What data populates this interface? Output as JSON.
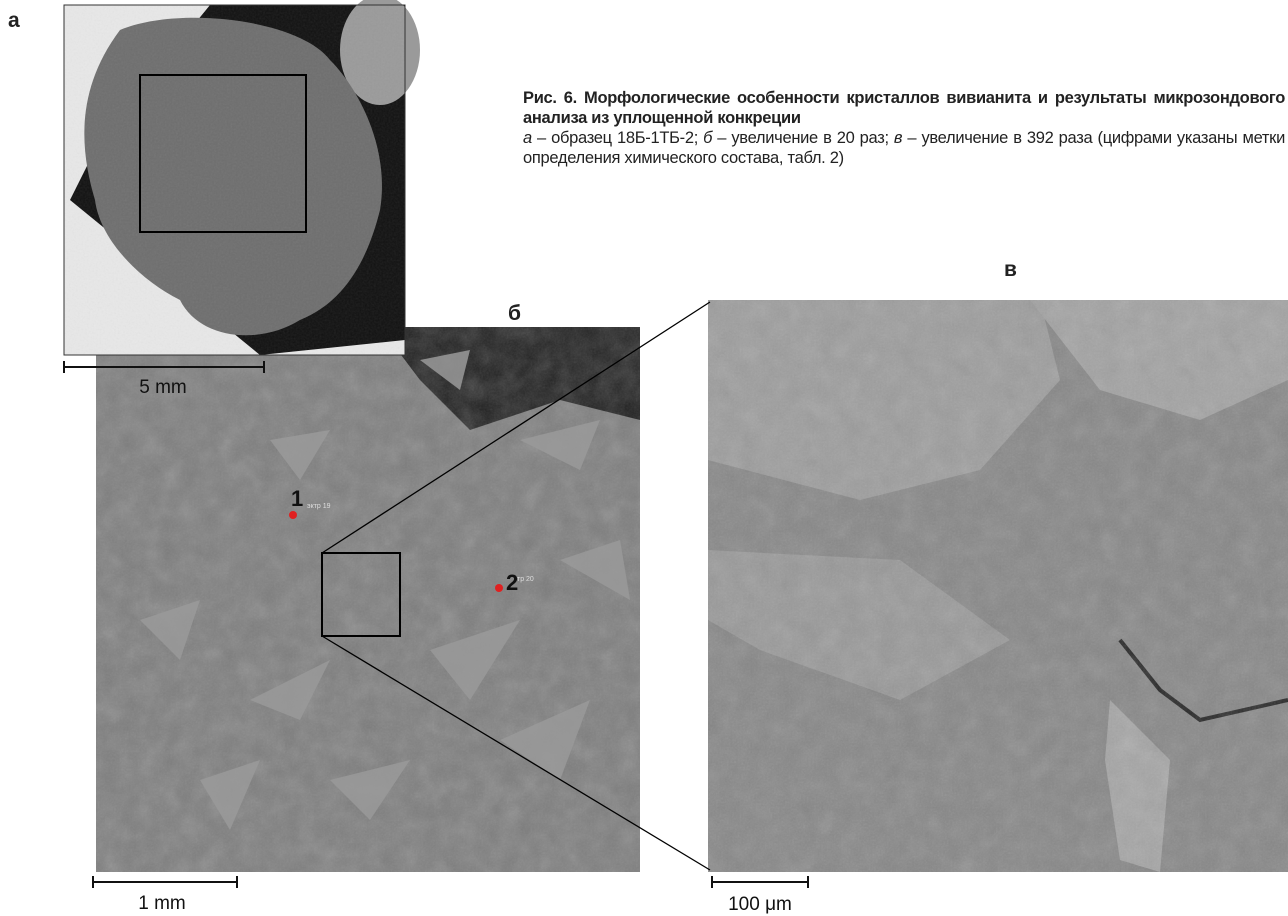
{
  "panels": {
    "a": {
      "label": "а",
      "scale": "5 mm"
    },
    "b": {
      "label": "б",
      "scale": "1 mm",
      "points": [
        {
          "label": "1",
          "tag": "эктр 19"
        },
        {
          "label": "2",
          "tag": "тр 20"
        }
      ]
    },
    "c": {
      "label": "в",
      "scale": "100 μm"
    }
  },
  "caption": {
    "title": "Рис. 6. Морфологические особенности кристаллов вивианита и результаты микрозондового анализа из уплощенной конкреции",
    "items": [
      {
        "letter": "а",
        "text": " – образец 18Б-1ТБ-2; "
      },
      {
        "letter": "б",
        "text": " – увеличение в 20 раз; "
      },
      {
        "letter": "в",
        "text": " – увеличение в 392 раза"
      }
    ],
    "note": "(цифрами указаны метки определения химического состава, табл. 2)"
  }
}
